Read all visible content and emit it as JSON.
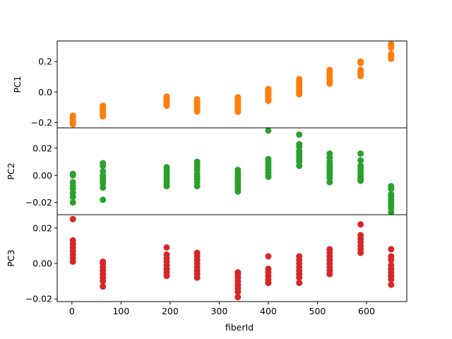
{
  "chart_data": {
    "type": "scatter",
    "xlabel": "fiberId",
    "x_ticks": [
      0,
      100,
      200,
      300,
      400,
      500,
      600
    ],
    "xlim": [
      -30,
      682
    ],
    "panels": [
      {
        "ylabel": "PC1",
        "color": "#ff7f0e",
        "ylim": [
          -0.235,
          0.335
        ],
        "y_ticks": [
          -0.2,
          0.0,
          0.2
        ],
        "y_tick_labels": [
          "−0.2",
          "0.0",
          "0.2"
        ],
        "points": [
          [
            2,
            -0.155
          ],
          [
            2,
            -0.165
          ],
          [
            2,
            -0.172
          ],
          [
            2,
            -0.178
          ],
          [
            2,
            -0.185
          ],
          [
            2,
            -0.192
          ],
          [
            2,
            -0.198
          ],
          [
            2,
            -0.205
          ],
          [
            2,
            -0.212
          ],
          [
            63,
            -0.09
          ],
          [
            63,
            -0.098
          ],
          [
            63,
            -0.105
          ],
          [
            63,
            -0.112
          ],
          [
            63,
            -0.12
          ],
          [
            63,
            -0.128
          ],
          [
            63,
            -0.136
          ],
          [
            63,
            -0.144
          ],
          [
            63,
            -0.152
          ],
          [
            63,
            -0.16
          ],
          [
            193,
            -0.03
          ],
          [
            193,
            -0.038
          ],
          [
            193,
            -0.046
          ],
          [
            193,
            -0.055
          ],
          [
            193,
            -0.064
          ],
          [
            193,
            -0.073
          ],
          [
            193,
            -0.082
          ],
          [
            193,
            -0.09
          ],
          [
            255,
            -0.048
          ],
          [
            255,
            -0.058
          ],
          [
            255,
            -0.068
          ],
          [
            255,
            -0.078
          ],
          [
            255,
            -0.088
          ],
          [
            255,
            -0.098
          ],
          [
            255,
            -0.108
          ],
          [
            255,
            -0.118
          ],
          [
            255,
            -0.128
          ],
          [
            338,
            -0.035
          ],
          [
            338,
            -0.045
          ],
          [
            338,
            -0.06
          ],
          [
            338,
            -0.075
          ],
          [
            338,
            -0.09
          ],
          [
            338,
            -0.1
          ],
          [
            338,
            -0.11
          ],
          [
            338,
            -0.122
          ],
          [
            338,
            -0.13
          ],
          [
            400,
            0.02
          ],
          [
            400,
            0.01
          ],
          [
            400,
            0.0
          ],
          [
            400,
            -0.01
          ],
          [
            400,
            -0.02
          ],
          [
            400,
            -0.03
          ],
          [
            400,
            -0.04
          ],
          [
            400,
            -0.05
          ],
          [
            400,
            -0.058
          ],
          [
            463,
            0.085
          ],
          [
            463,
            0.07
          ],
          [
            463,
            0.055
          ],
          [
            463,
            0.04
          ],
          [
            463,
            0.025
          ],
          [
            463,
            0.01
          ],
          [
            463,
            0.0
          ],
          [
            463,
            -0.005
          ],
          [
            463,
            -0.015
          ],
          [
            525,
            0.145
          ],
          [
            525,
            0.13
          ],
          [
            525,
            0.11
          ],
          [
            525,
            0.095
          ],
          [
            525,
            0.085
          ],
          [
            525,
            0.075
          ],
          [
            525,
            0.065
          ],
          [
            525,
            0.055
          ],
          [
            588,
            0.2
          ],
          [
            588,
            0.19
          ],
          [
            588,
            0.145
          ],
          [
            588,
            0.135
          ],
          [
            588,
            0.125
          ],
          [
            588,
            0.115
          ],
          [
            588,
            0.105
          ],
          [
            650,
            0.315
          ],
          [
            650,
            0.305
          ],
          [
            650,
            0.29
          ],
          [
            650,
            0.25
          ],
          [
            650,
            0.24
          ],
          [
            650,
            0.232
          ],
          [
            650,
            0.225
          ],
          [
            650,
            0.218
          ]
        ]
      },
      {
        "ylabel": "PC2",
        "color": "#2ca02c",
        "ylim": [
          -0.029,
          0.035
        ],
        "y_ticks": [
          -0.02,
          0.0,
          0.02
        ],
        "y_tick_labels": [
          "−0.02",
          "0.00",
          "0.02"
        ],
        "points": [
          [
            2,
            0.001
          ],
          [
            2,
            0.0
          ],
          [
            2,
            -0.005
          ],
          [
            2,
            -0.008
          ],
          [
            2,
            -0.01
          ],
          [
            2,
            -0.013
          ],
          [
            2,
            -0.016
          ],
          [
            2,
            -0.02
          ],
          [
            63,
            0.009
          ],
          [
            63,
            0.007
          ],
          [
            63,
            0.003
          ],
          [
            63,
            0.0
          ],
          [
            63,
            -0.002
          ],
          [
            63,
            -0.004
          ],
          [
            63,
            -0.006
          ],
          [
            63,
            -0.009
          ],
          [
            63,
            -0.018
          ],
          [
            193,
            0.006
          ],
          [
            193,
            0.004
          ],
          [
            193,
            0.002
          ],
          [
            193,
            0.0
          ],
          [
            193,
            -0.002
          ],
          [
            193,
            -0.004
          ],
          [
            193,
            -0.006
          ],
          [
            193,
            -0.008
          ],
          [
            255,
            0.01
          ],
          [
            255,
            0.008
          ],
          [
            255,
            0.006
          ],
          [
            255,
            0.004
          ],
          [
            255,
            0.001
          ],
          [
            255,
            -0.001
          ],
          [
            255,
            -0.003
          ],
          [
            255,
            -0.005
          ],
          [
            255,
            -0.008
          ],
          [
            338,
            0.004
          ],
          [
            338,
            0.002
          ],
          [
            338,
            0.0
          ],
          [
            338,
            -0.002
          ],
          [
            338,
            -0.004
          ],
          [
            338,
            -0.006
          ],
          [
            338,
            -0.008
          ],
          [
            338,
            -0.01
          ],
          [
            338,
            -0.012
          ],
          [
            400,
            0.033
          ],
          [
            400,
            0.012
          ],
          [
            400,
            0.01
          ],
          [
            400,
            0.008
          ],
          [
            400,
            0.006
          ],
          [
            400,
            0.004
          ],
          [
            400,
            0.002
          ],
          [
            400,
            0.0
          ],
          [
            400,
            -0.001
          ],
          [
            463,
            0.03
          ],
          [
            463,
            0.023
          ],
          [
            463,
            0.021
          ],
          [
            463,
            0.018
          ],
          [
            463,
            0.016
          ],
          [
            463,
            0.014
          ],
          [
            463,
            0.012
          ],
          [
            463,
            0.01
          ],
          [
            463,
            0.007
          ],
          [
            525,
            0.016
          ],
          [
            525,
            0.013
          ],
          [
            525,
            0.01
          ],
          [
            525,
            0.008
          ],
          [
            525,
            0.006
          ],
          [
            525,
            0.004
          ],
          [
            525,
            0.002
          ],
          [
            525,
            0.0
          ],
          [
            525,
            -0.002
          ],
          [
            525,
            -0.005
          ],
          [
            588,
            0.016
          ],
          [
            588,
            0.011
          ],
          [
            588,
            0.007
          ],
          [
            588,
            0.005
          ],
          [
            588,
            0.003
          ],
          [
            588,
            0.001
          ],
          [
            588,
            -0.001
          ],
          [
            588,
            -0.003
          ],
          [
            588,
            -0.004
          ],
          [
            650,
            -0.008
          ],
          [
            650,
            -0.01
          ],
          [
            650,
            -0.014
          ],
          [
            650,
            -0.016
          ],
          [
            650,
            -0.018
          ],
          [
            650,
            -0.02
          ],
          [
            650,
            -0.022
          ],
          [
            650,
            -0.024
          ],
          [
            650,
            -0.027
          ]
        ]
      },
      {
        "ylabel": "PC3",
        "color": "#d62728",
        "ylim": [
          -0.0215,
          0.0275
        ],
        "y_ticks": [
          -0.02,
          0.0,
          0.02
        ],
        "y_tick_labels": [
          "−0.02",
          "0.00",
          "0.02"
        ],
        "points": [
          [
            2,
            0.025
          ],
          [
            2,
            0.013
          ],
          [
            2,
            0.011
          ],
          [
            2,
            0.009
          ],
          [
            2,
            0.007
          ],
          [
            2,
            0.005
          ],
          [
            2,
            0.003
          ],
          [
            2,
            0.001
          ],
          [
            63,
            0.001
          ],
          [
            63,
            0.0
          ],
          [
            63,
            -0.002
          ],
          [
            63,
            -0.004
          ],
          [
            63,
            -0.006
          ],
          [
            63,
            -0.008
          ],
          [
            63,
            -0.01
          ],
          [
            63,
            -0.013
          ],
          [
            193,
            0.009
          ],
          [
            193,
            0.005
          ],
          [
            193,
            0.003
          ],
          [
            193,
            0.001
          ],
          [
            193,
            -0.001
          ],
          [
            193,
            -0.003
          ],
          [
            193,
            -0.005
          ],
          [
            193,
            -0.007
          ],
          [
            255,
            0.006
          ],
          [
            255,
            0.004
          ],
          [
            255,
            0.002
          ],
          [
            255,
            0.0
          ],
          [
            255,
            -0.002
          ],
          [
            255,
            -0.004
          ],
          [
            255,
            -0.006
          ],
          [
            255,
            -0.008
          ],
          [
            338,
            -0.005
          ],
          [
            338,
            -0.006
          ],
          [
            338,
            -0.008
          ],
          [
            338,
            -0.01
          ],
          [
            338,
            -0.012
          ],
          [
            338,
            -0.014
          ],
          [
            338,
            -0.016
          ],
          [
            338,
            -0.019
          ],
          [
            400,
            0.004
          ],
          [
            400,
            -0.003
          ],
          [
            400,
            -0.005
          ],
          [
            400,
            -0.007
          ],
          [
            400,
            -0.009
          ],
          [
            400,
            -0.011
          ],
          [
            463,
            0.004
          ],
          [
            463,
            0.002
          ],
          [
            463,
            0.0
          ],
          [
            463,
            -0.002
          ],
          [
            463,
            -0.004
          ],
          [
            463,
            -0.006
          ],
          [
            463,
            -0.008
          ],
          [
            463,
            -0.011
          ],
          [
            525,
            0.008
          ],
          [
            525,
            0.006
          ],
          [
            525,
            0.004
          ],
          [
            525,
            0.002
          ],
          [
            525,
            0.0
          ],
          [
            525,
            -0.002
          ],
          [
            525,
            -0.004
          ],
          [
            525,
            -0.006
          ],
          [
            588,
            0.022
          ],
          [
            588,
            0.016
          ],
          [
            588,
            0.014
          ],
          [
            588,
            0.012
          ],
          [
            588,
            0.01
          ],
          [
            588,
            0.008
          ],
          [
            588,
            0.006
          ],
          [
            650,
            0.008
          ],
          [
            650,
            0.004
          ],
          [
            650,
            0.002
          ],
          [
            650,
            -0.001
          ],
          [
            650,
            -0.003
          ],
          [
            650,
            -0.005
          ],
          [
            650,
            -0.007
          ],
          [
            650,
            -0.009
          ],
          [
            650,
            -0.012
          ]
        ]
      }
    ]
  }
}
